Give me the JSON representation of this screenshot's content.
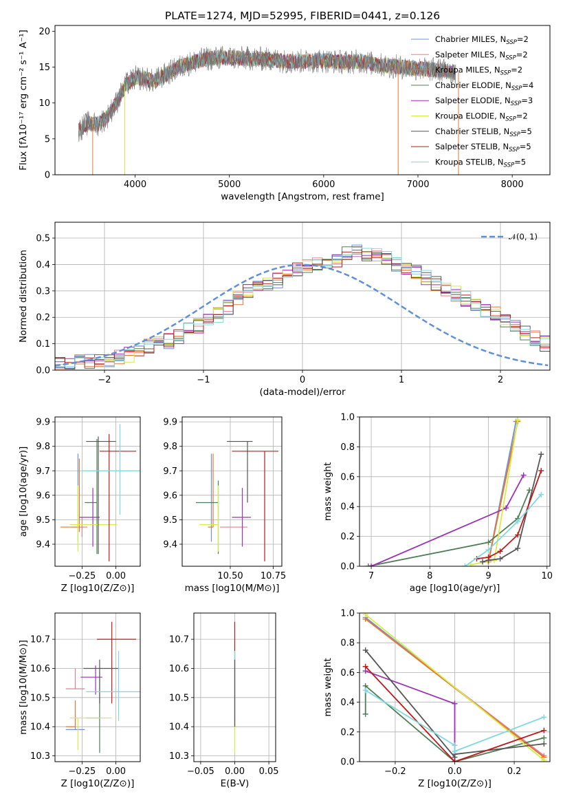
{
  "figure_title": "PLATE=1274, MJD=52995, FIBERID=0441, z=0.126",
  "colors": {
    "Chabrier MILES": "#6f8fe0",
    "Salpeter MILES": "#e77e8e",
    "Kroupa MILES": "#e07a32",
    "Chabrier ELODIE": "#4e7d55",
    "Salpeter ELODIE": "#9b32b4",
    "Kroupa ELODIE": "#d8ea44",
    "Chabrier STELIB": "#555555",
    "Salpeter STELIB": "#bb1a1a",
    "Kroupa STELIB": "#7fd8e0",
    "normal": "#5f8fd8",
    "grid": "#b0b0b0"
  },
  "chart_data": [
    {
      "id": "spectrum",
      "type": "line",
      "title": "",
      "xlabel": "wavelength [Angstrom, rest frame]",
      "ylabel": "Flux [fλ10⁻¹⁷ erg cm⁻² s⁻¹ A⁻¹]",
      "xlim": [
        3150,
        8400
      ],
      "ylim": [
        0,
        20.8
      ],
      "xticks": [
        4000,
        5000,
        6000,
        7000,
        8000
      ],
      "yticks": [
        0,
        5,
        10,
        15,
        20
      ],
      "grid": false,
      "legend_position": "top-right",
      "legend": [
        "Chabrier MILES, N_SSP=2",
        "Salpeter MILES, N_SSP=2",
        "Kroupa MILES, N_SSP=2",
        "Chabrier ELODIE, N_SSP=4",
        "Salpeter ELODIE, N_SSP=3",
        "Kroupa ELODIE, N_SSP=2",
        "Chabrier STELIB, N_SSP=5",
        "Salpeter STELIB, N_SSP=5",
        "Kroupa STELIB, N_SSP=5"
      ],
      "data_envelope": {
        "x": [
          3400,
          3500,
          3600,
          3700,
          3800,
          3900,
          4000,
          4100,
          4200,
          4300,
          4400,
          4500,
          4600,
          4700,
          4800,
          4900,
          5000,
          5200,
          5400,
          5600,
          5800,
          6000,
          6200,
          6400,
          6600,
          6800,
          7000,
          7200,
          7400
        ],
        "y": [
          6.2,
          7.2,
          7.0,
          8.0,
          10.0,
          12.5,
          13.5,
          13.4,
          13.0,
          13.8,
          14.5,
          15.2,
          15.6,
          16.0,
          16.2,
          16.3,
          16.3,
          16.2,
          16.1,
          15.8,
          15.8,
          15.9,
          15.7,
          15.8,
          15.3,
          15.0,
          14.8,
          14.6,
          14.3
        ]
      },
      "cutoffs": [
        {
          "series": "Kroupa MILES",
          "wavelength": 3550
        },
        {
          "series": "Kroupa ELODIE",
          "wavelength": 3890
        },
        {
          "series": "Kroupa MILES",
          "wavelength": 6790
        },
        {
          "series": "Kroupa MILES",
          "wavelength": 7430
        }
      ]
    },
    {
      "id": "residual-histogram",
      "type": "histogram",
      "title": "",
      "xlabel": "(data-model)/error",
      "ylabel": "Normed distribution",
      "xlim": [
        -2.5,
        2.5
      ],
      "ylim": [
        0,
        0.56
      ],
      "xticks": [
        -2,
        -1,
        0,
        1,
        2
      ],
      "yticks": [
        0.0,
        0.1,
        0.2,
        0.3,
        0.4,
        0.5
      ],
      "grid": true,
      "legend_position": "top-right",
      "legend": [
        "𝒩(0, 1)"
      ],
      "bin_width": 0.1,
      "bin_start": -2.5,
      "approx_histogram": [
        0.02,
        0.02,
        0.03,
        0.03,
        0.03,
        0.04,
        0.05,
        0.06,
        0.08,
        0.09,
        0.1,
        0.11,
        0.13,
        0.15,
        0.17,
        0.19,
        0.21,
        0.24,
        0.27,
        0.3,
        0.32,
        0.33,
        0.34,
        0.36,
        0.38,
        0.39,
        0.4,
        0.4,
        0.42,
        0.44,
        0.45,
        0.44,
        0.43,
        0.42,
        0.4,
        0.39,
        0.37,
        0.35,
        0.33,
        0.31,
        0.29,
        0.27,
        0.25,
        0.23,
        0.21,
        0.19,
        0.17,
        0.14,
        0.12,
        0.1
      ]
    },
    {
      "id": "age-vs-z",
      "type": "scatter",
      "xlabel": "Z [log10(Z/Z⊙)]",
      "ylabel": "age  [log10(age/yr)]",
      "xlim": [
        -0.45,
        0.18
      ],
      "ylim": [
        9.31,
        9.92
      ],
      "xticks": [
        -0.25,
        0.0
      ],
      "yticks": [
        9.4,
        9.5,
        9.6,
        9.7,
        9.8,
        9.9
      ],
      "grid": true,
      "points": [
        {
          "series": "Chabrier MILES",
          "x": -0.28,
          "y": 9.47,
          "xerr": [
            0.05,
            0.05
          ],
          "yerr": [
            0.06,
            0.3
          ]
        },
        {
          "series": "Salpeter MILES",
          "x": -0.25,
          "y": 9.47,
          "xerr": [
            0.04,
            0.04
          ],
          "yerr": [
            0.04,
            0.04
          ]
        },
        {
          "series": "Kroupa MILES",
          "x": -0.27,
          "y": 9.47,
          "xerr": [
            0.14,
            0.0
          ],
          "yerr": [
            0.02,
            0.28
          ]
        },
        {
          "series": "Chabrier ELODIE",
          "x": -0.14,
          "y": 9.57,
          "xerr": [
            0.09,
            0.0
          ],
          "yerr": [
            0.21,
            0.26
          ]
        },
        {
          "series": "Salpeter ELODIE",
          "x": -0.17,
          "y": 9.51,
          "xerr": [
            0.1,
            0.05
          ],
          "yerr": [
            0.12,
            0.12
          ]
        },
        {
          "series": "Kroupa ELODIE",
          "x": -0.28,
          "y": 9.48,
          "xerr": [
            0.06,
            0.29
          ],
          "yerr": [
            0.11,
            0.16
          ]
        },
        {
          "series": "Chabrier STELIB",
          "x": -0.13,
          "y": 9.82,
          "xerr": [
            0.09,
            0.13
          ],
          "yerr": [
            0.46,
            0.02
          ]
        },
        {
          "series": "Salpeter STELIB",
          "x": -0.05,
          "y": 9.78,
          "xerr": [
            0.07,
            0.2
          ],
          "yerr": [
            0.45,
            0.07
          ]
        },
        {
          "series": "Kroupa STELIB",
          "x": 0.03,
          "y": 9.7,
          "xerr": [
            0.28,
            0.18
          ],
          "yerr": [
            0.18,
            0.19
          ]
        }
      ]
    },
    {
      "id": "age-vs-mass",
      "type": "scatter",
      "xlabel": "mass [log10(M/M⊙)]",
      "ylabel": "",
      "xlim": [
        10.22,
        10.8
      ],
      "ylim": [
        9.31,
        9.92
      ],
      "xticks": [
        10.5,
        10.75
      ],
      "yticks": [
        9.4,
        9.5,
        9.6,
        9.7,
        9.8,
        9.9
      ],
      "grid": true,
      "points": [
        {
          "series": "Chabrier MILES",
          "x": 10.39,
          "y": 9.47,
          "xerr": [
            0.0,
            0.0
          ],
          "yerr": [
            0.06,
            0.3
          ]
        },
        {
          "series": "Salpeter MILES",
          "x": 10.52,
          "y": 9.47,
          "xerr": [
            0.08,
            0.08
          ],
          "yerr": [
            0.0,
            0.0
          ]
        },
        {
          "series": "Kroupa MILES",
          "x": 10.4,
          "y": 9.47,
          "xerr": [
            0.03,
            0.0
          ],
          "yerr": [
            0.0,
            0.3
          ]
        },
        {
          "series": "Chabrier ELODIE",
          "x": 10.43,
          "y": 9.57,
          "xerr": [
            0.13,
            0.0
          ],
          "yerr": [
            0.21,
            0.09
          ]
        },
        {
          "series": "Salpeter ELODIE",
          "x": 10.57,
          "y": 9.51,
          "xerr": [
            0.06,
            0.05
          ],
          "yerr": [
            0.12,
            0.12
          ]
        },
        {
          "series": "Kroupa ELODIE",
          "x": 10.43,
          "y": 9.48,
          "xerr": [
            0.11,
            0.0
          ],
          "yerr": [
            0.11,
            0.16
          ]
        },
        {
          "series": "Chabrier STELIB",
          "x": 10.6,
          "y": 9.82,
          "xerr": [
            0.12,
            0.03
          ],
          "yerr": [
            0.25,
            0.0
          ]
        },
        {
          "series": "Salpeter STELIB",
          "x": 10.7,
          "y": 9.78,
          "xerr": [
            0.19,
            0.08
          ],
          "yerr": [
            0.45,
            0.0
          ]
        },
        {
          "series": "Kroupa STELIB",
          "x": 10.52,
          "y": 9.7,
          "xerr": [
            0.0,
            0.0
          ],
          "yerr": [
            0.0,
            0.0
          ]
        }
      ]
    },
    {
      "id": "massweight-vs-age",
      "type": "line",
      "xlabel": "age  [log10(age/yr)]",
      "ylabel": "mass weight",
      "xlim": [
        6.8,
        10.05
      ],
      "ylim": [
        0,
        1.0
      ],
      "xticks": [
        7,
        8,
        9,
        10
      ],
      "yticks": [
        0.0,
        0.2,
        0.4,
        0.6,
        0.8,
        1.0
      ],
      "grid": true,
      "series": [
        {
          "name": "Chabrier MILES",
          "x": [
            9.0,
            9.47
          ],
          "y": [
            0.03,
            0.97
          ]
        },
        {
          "name": "Salpeter MILES",
          "x": [
            9.0,
            9.5
          ],
          "y": [
            0.03,
            0.97
          ]
        },
        {
          "name": "Kroupa MILES",
          "x": [
            9.0,
            9.5
          ],
          "y": [
            0.03,
            0.97
          ]
        },
        {
          "name": "Chabrier ELODIE",
          "x": [
            6.95,
            9.0,
            9.5,
            9.7
          ],
          "y": [
            0.0,
            0.16,
            0.32,
            0.51
          ]
        },
        {
          "name": "Salpeter ELODIE",
          "x": [
            7.0,
            9.3,
            9.6
          ],
          "y": [
            0.0,
            0.39,
            0.61
          ]
        },
        {
          "name": "Kroupa ELODIE",
          "x": [
            8.7,
            9.1,
            9.5
          ],
          "y": [
            0.01,
            0.04,
            0.98
          ]
        },
        {
          "name": "Chabrier STELIB",
          "x": [
            8.9,
            9.0,
            9.2,
            9.5,
            9.9
          ],
          "y": [
            0.03,
            0.04,
            0.05,
            0.12,
            0.75
          ]
        },
        {
          "name": "Salpeter STELIB",
          "x": [
            8.8,
            9.0,
            9.2,
            9.5,
            9.9
          ],
          "y": [
            0.05,
            0.06,
            0.1,
            0.21,
            0.64
          ]
        },
        {
          "name": "Kroupa STELIB",
          "x": [
            8.6,
            9.0,
            9.5,
            9.9
          ],
          "y": [
            0.0,
            0.11,
            0.3,
            0.48
          ]
        }
      ]
    },
    {
      "id": "mass-vs-z",
      "type": "scatter",
      "xlabel": "Z [log10(Z/Z⊙)]",
      "ylabel": "mass [log10(M/M⊙)]",
      "xlim": [
        -0.45,
        0.18
      ],
      "ylim": [
        10.28,
        10.79
      ],
      "xticks": [
        -0.25,
        0.0
      ],
      "yticks": [
        10.3,
        10.4,
        10.5,
        10.6,
        10.7
      ],
      "grid": true,
      "points": [
        {
          "series": "Chabrier MILES",
          "x": -0.3,
          "y": 10.39,
          "xerr": [
            0.07,
            0.07
          ],
          "yerr": [
            0.0,
            0.05
          ]
        },
        {
          "series": "Salpeter MILES",
          "x": -0.3,
          "y": 10.53,
          "xerr": [
            0.07,
            0.07
          ],
          "yerr": [
            0.0,
            0.07
          ]
        },
        {
          "series": "Kroupa MILES",
          "x": -0.3,
          "y": 10.4,
          "xerr": [
            0.07,
            0.0
          ],
          "yerr": [
            0.0,
            0.09
          ]
        },
        {
          "series": "Chabrier ELODIE",
          "x": -0.12,
          "y": 10.43,
          "xerr": [
            0.1,
            0.0
          ],
          "yerr": [
            0.12,
            0.16
          ]
        },
        {
          "series": "Salpeter ELODIE",
          "x": -0.15,
          "y": 10.57,
          "xerr": [
            0.11,
            0.05
          ],
          "yerr": [
            0.06,
            0.04
          ]
        },
        {
          "series": "Kroupa ELODIE",
          "x": -0.28,
          "y": 10.43,
          "xerr": [
            0.06,
            0.25
          ],
          "yerr": [
            0.11,
            0.0
          ]
        },
        {
          "series": "Chabrier STELIB",
          "x": -0.12,
          "y": 10.6,
          "xerr": [
            0.12,
            0.14
          ],
          "yerr": [
            0.12,
            0.03
          ]
        },
        {
          "series": "Salpeter STELIB",
          "x": -0.03,
          "y": 10.7,
          "xerr": [
            0.11,
            0.18
          ],
          "yerr": [
            0.22,
            0.06
          ]
        },
        {
          "series": "Kroupa STELIB",
          "x": 0.02,
          "y": 10.52,
          "xerr": [
            0.24,
            0.16
          ],
          "yerr": [
            0.1,
            0.14
          ]
        }
      ]
    },
    {
      "id": "mass-vs-ebv",
      "type": "scatter",
      "xlabel": "E(B-V)",
      "ylabel": "",
      "xlim": [
        -0.06,
        0.06
      ],
      "ylim": [
        10.28,
        10.79
      ],
      "xticks": [
        -0.05,
        0.0,
        0.05
      ],
      "yticks": [
        10.3,
        10.4,
        10.5,
        10.6,
        10.7
      ],
      "grid": true,
      "points": [
        {
          "series": "Salpeter STELIB",
          "x": 0.0,
          "y": 10.7,
          "xerr": [
            0.0,
            0.0
          ],
          "yerr": [
            0.3,
            0.06
          ]
        },
        {
          "series": "Kroupa STELIB",
          "x": 0.0,
          "y": 10.52,
          "xerr": [
            0.0,
            0.0
          ],
          "yerr": [
            0.1,
            0.14
          ]
        },
        {
          "series": "Kroupa ELODIE",
          "x": 0.0,
          "y": 10.43,
          "xerr": [
            0.0,
            0.0
          ],
          "yerr": [
            0.12,
            0.0
          ]
        },
        {
          "series": "Chabrier STELIB",
          "x": 0.0,
          "y": 10.6,
          "xerr": [
            0.0,
            0.0
          ],
          "yerr": [
            0.2,
            0.03
          ]
        }
      ]
    },
    {
      "id": "massweight-vs-z",
      "type": "line",
      "xlabel": "Z [log10(Z/Z⊙)]",
      "ylabel": "mass weight",
      "xlim": [
        -0.32,
        0.32
      ],
      "ylim": [
        0,
        1.0
      ],
      "xticks": [
        -0.2,
        0.0,
        0.2
      ],
      "yticks": [
        0.0,
        0.2,
        0.4,
        0.6,
        0.8,
        1.0
      ],
      "grid": true,
      "series": [
        {
          "name": "Chabrier MILES",
          "x": [
            -0.3,
            0.3
          ],
          "y": [
            0.97,
            0.03
          ]
        },
        {
          "name": "Salpeter MILES",
          "x": [
            -0.3,
            0.3
          ],
          "y": [
            0.96,
            0.04
          ]
        },
        {
          "name": "Kroupa MILES",
          "x": [
            -0.3,
            0.3
          ],
          "y": [
            0.96,
            0.03
          ]
        },
        {
          "name": "Chabrier ELODIE",
          "x": [
            -0.3,
            -0.3,
            0.0,
            0.3
          ],
          "y": [
            0.32,
            0.51,
            0.0,
            0.16
          ]
        },
        {
          "name": "Salpeter ELODIE",
          "x": [
            -0.3,
            0.0,
            0.0
          ],
          "y": [
            0.61,
            0.39,
            0.0
          ]
        },
        {
          "name": "Kroupa ELODIE",
          "x": [
            -0.3,
            0.3
          ],
          "y": [
            0.99,
            0.01
          ]
        },
        {
          "name": "Chabrier STELIB",
          "x": [
            -0.3,
            0.0,
            0.0,
            0.3
          ],
          "y": [
            0.75,
            0.03,
            0.05,
            0.12
          ]
        },
        {
          "name": "Salpeter STELIB",
          "x": [
            -0.3,
            0.0,
            0.3
          ],
          "y": [
            0.64,
            0.0,
            0.21
          ]
        },
        {
          "name": "Kroupa STELIB",
          "x": [
            -0.3,
            0.0,
            0.0,
            0.3
          ],
          "y": [
            0.48,
            0.11,
            0.07,
            0.3
          ]
        }
      ]
    }
  ]
}
